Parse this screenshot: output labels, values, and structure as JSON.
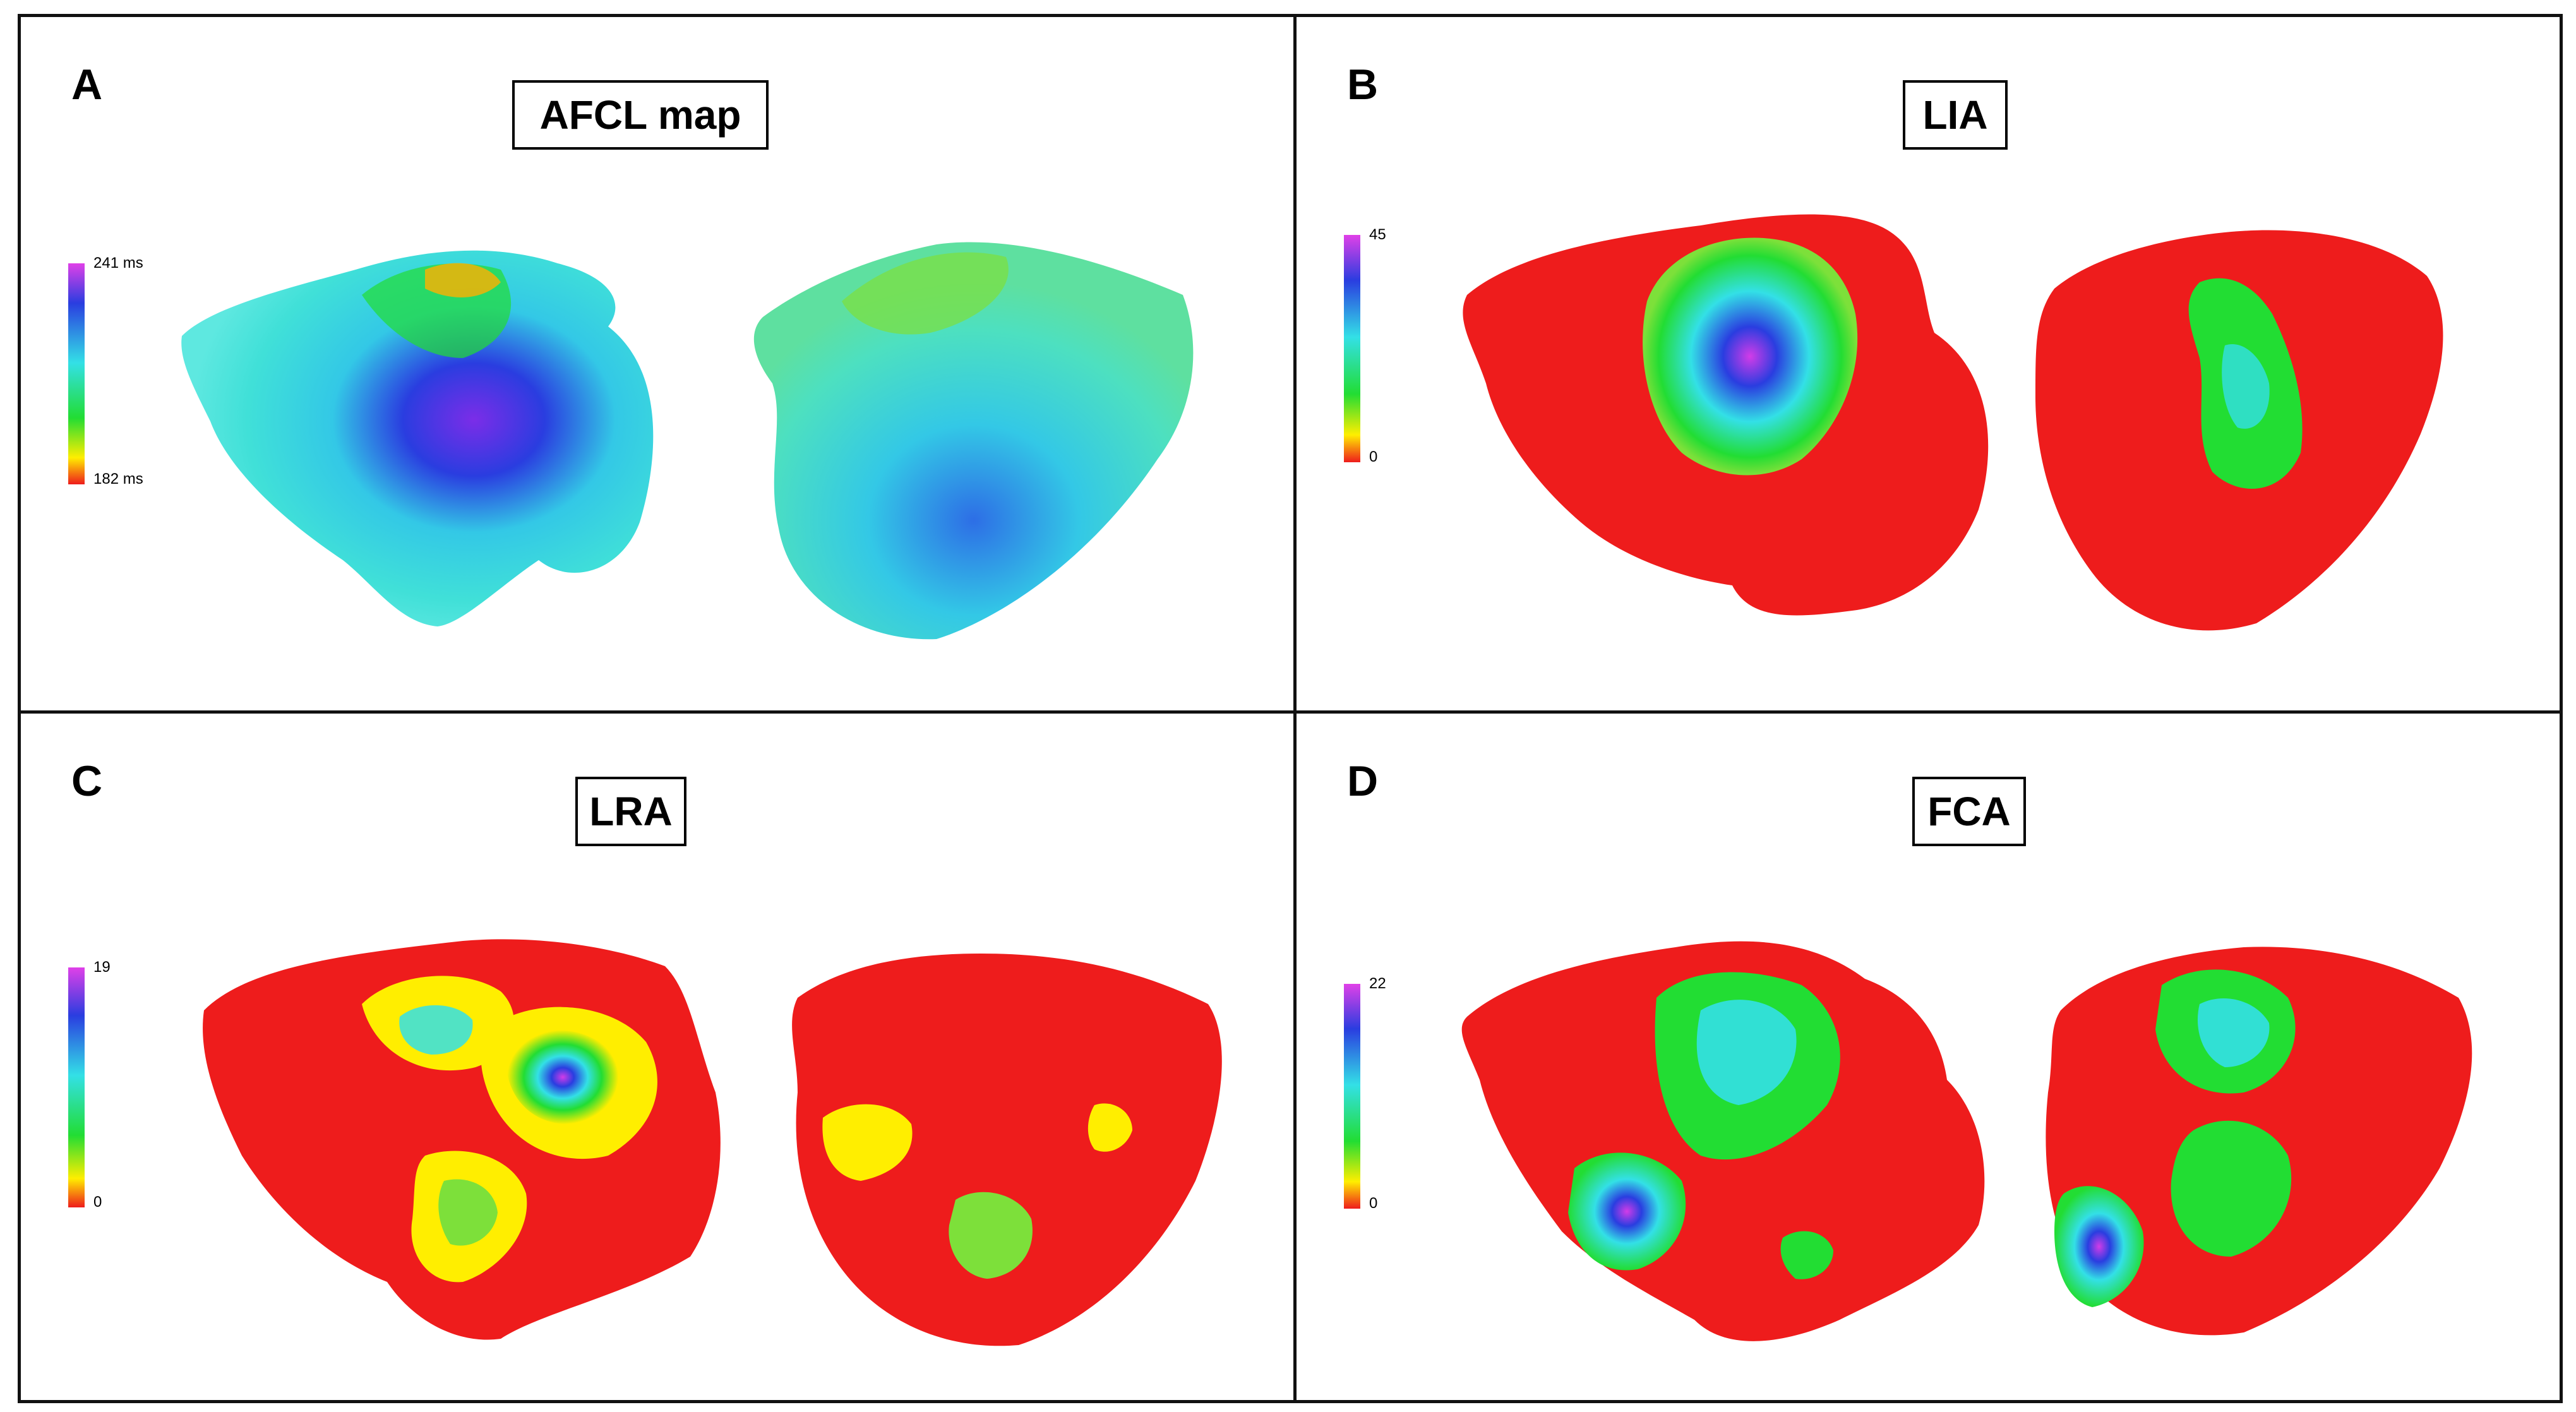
{
  "panels": [
    {
      "letter": "A",
      "title": "AFCL map",
      "scale_max": "241 ms",
      "scale_min": "182 ms",
      "colormap": "afcl"
    },
    {
      "letter": "B",
      "title": "LIA",
      "scale_max": "45",
      "scale_min": "0",
      "colormap": "lia"
    },
    {
      "letter": "C",
      "title": "LRA",
      "scale_max": "19",
      "scale_min": "0",
      "colormap": "lra"
    },
    {
      "letter": "D",
      "title": "FCA",
      "scale_max": "22",
      "scale_min": "0",
      "colormap": "fca"
    }
  ],
  "colors": {
    "red": "#ee1c1c",
    "yellow": "#ffee00",
    "green": "#22dd33",
    "cyan": "#33e0e6",
    "blue": "#2a3de0",
    "magenta": "#d23ce8"
  }
}
